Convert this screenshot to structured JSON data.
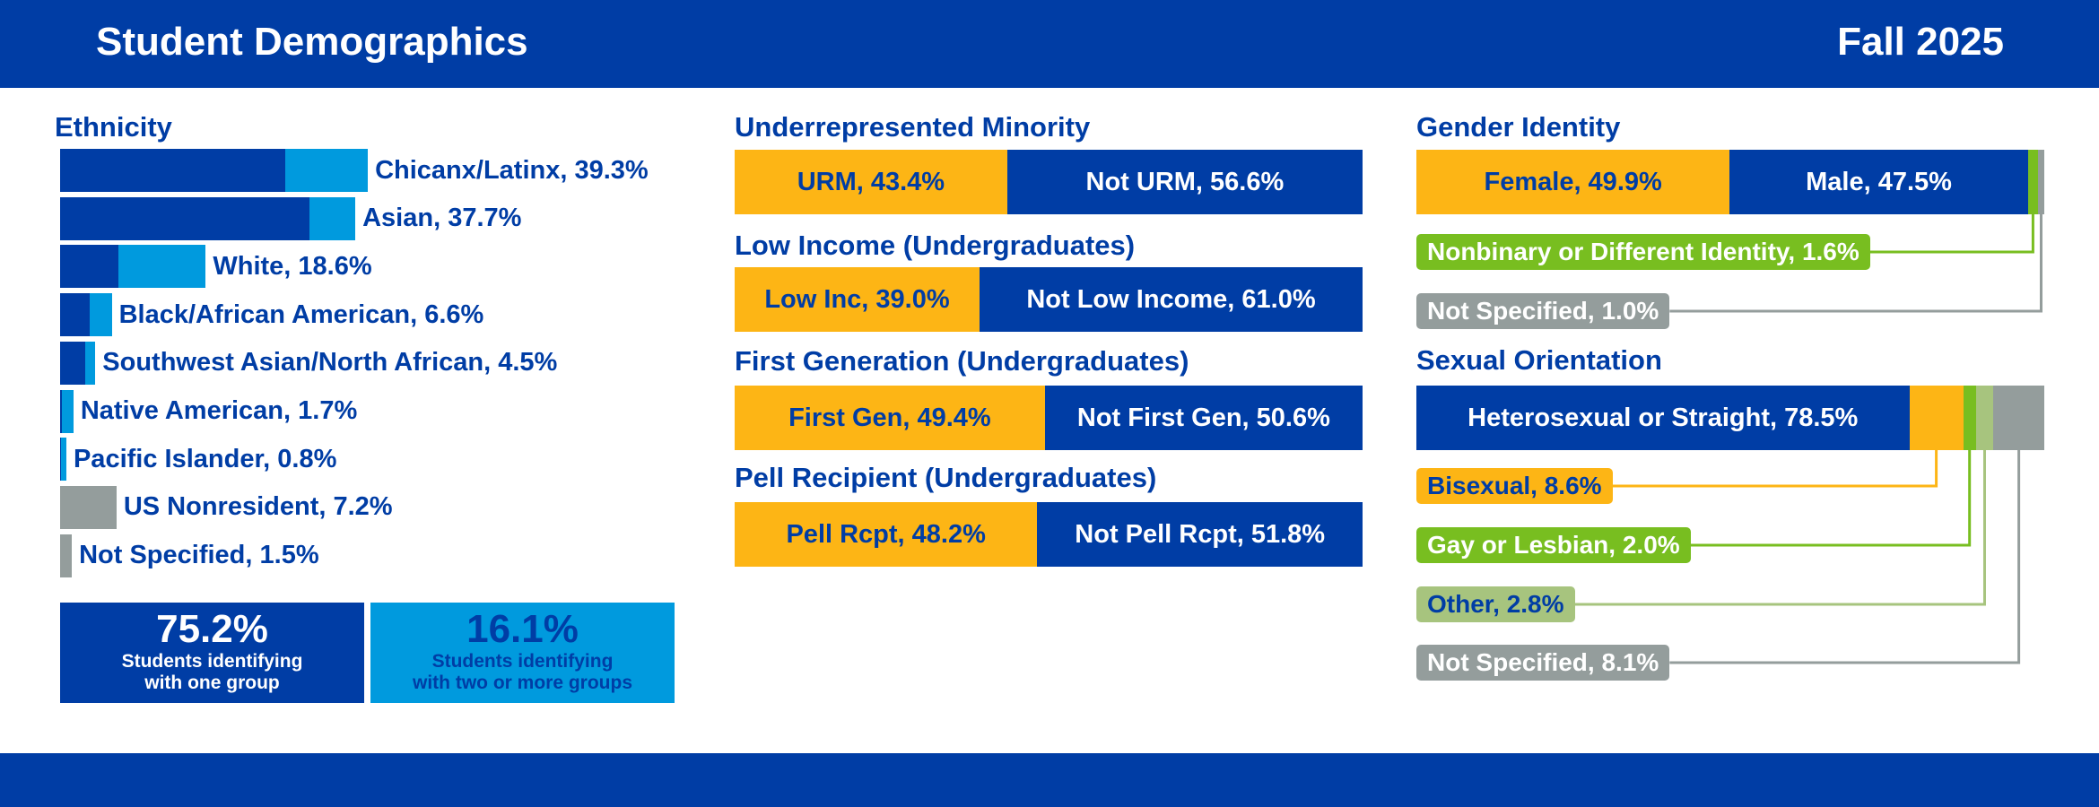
{
  "header": {
    "title": "Student Demographics",
    "term": "Fall 2025"
  },
  "colors": {
    "dark_blue": "#003DA5",
    "light_blue": "#009ADE",
    "gold": "#FDB515",
    "green": "#78BE20",
    "light_green": "#A7C47E",
    "gray": "#949D9C"
  },
  "chart_data": [
    {
      "type": "bar",
      "orientation": "horizontal",
      "stacked": true,
      "title": "Ethnicity",
      "categories": [
        "Chicanx/Latinx",
        "Asian",
        "White",
        "Black/African American",
        "Southwest Asian/North African",
        "Native American",
        "Pacific Islander",
        "US Nonresident",
        "Not Specified"
      ],
      "labels": [
        "Chicanx/Latinx, 39.3%",
        "Asian, 37.7%",
        "White, 18.6%",
        "Black/African American, 6.6%",
        "Southwest Asian/North African, 4.5%",
        "Native American, 1.7%",
        "Pacific Islander, 0.8%",
        "US Nonresident, 7.2%",
        "Not Specified, 1.5%"
      ],
      "values": [
        39.3,
        37.7,
        18.6,
        6.6,
        4.5,
        1.7,
        0.8,
        7.2,
        1.5
      ],
      "series": [
        {
          "name": "Students identifying with one group",
          "color": "#003DA5",
          "values": [
            28.8,
            31.9,
            7.4,
            3.8,
            3.2,
            0.2,
            0.1,
            0,
            0
          ]
        },
        {
          "name": "Students identifying with two or more groups",
          "color": "#009ADE",
          "values": [
            10.5,
            5.8,
            11.2,
            2.8,
            1.3,
            1.5,
            0.7,
            0,
            0
          ]
        },
        {
          "name": "",
          "color": "#949D9C",
          "values": [
            0,
            0,
            0,
            0,
            0,
            0,
            0,
            7.2,
            1.5
          ]
        }
      ],
      "summary": [
        {
          "value": "75.2%",
          "line1": "Students identifying",
          "line2": "with one group"
        },
        {
          "value": "16.1%",
          "line1": "Students identifying",
          "line2": "with two or more groups"
        }
      ]
    },
    {
      "type": "bar",
      "stacked": true,
      "title": "Underrepresented Minority",
      "segments": [
        {
          "label": "URM, 43.4%",
          "value": 43.4,
          "color": "#FDB515",
          "text": "#003DA5"
        },
        {
          "label": "Not URM, 56.6%",
          "value": 56.6,
          "color": "#003DA5",
          "text": "#FFFFFF"
        }
      ]
    },
    {
      "type": "bar",
      "stacked": true,
      "title": "Low Income (Undergraduates)",
      "segments": [
        {
          "label": "Low Inc, 39.0%",
          "value": 39.0,
          "color": "#FDB515",
          "text": "#003DA5"
        },
        {
          "label": "Not Low Income, 61.0%",
          "value": 61.0,
          "color": "#003DA5",
          "text": "#FFFFFF"
        }
      ]
    },
    {
      "type": "bar",
      "stacked": true,
      "title": "First Generation (Undergraduates)",
      "segments": [
        {
          "label": "First Gen, 49.4%",
          "value": 49.4,
          "color": "#FDB515",
          "text": "#003DA5"
        },
        {
          "label": "Not First Gen, 50.6%",
          "value": 50.6,
          "color": "#003DA5",
          "text": "#FFFFFF"
        }
      ]
    },
    {
      "type": "bar",
      "stacked": true,
      "title": "Pell Recipient (Undergraduates)",
      "segments": [
        {
          "label": "Pell Rcpt, 48.2%",
          "value": 48.2,
          "color": "#FDB515",
          "text": "#003DA5"
        },
        {
          "label": "Not Pell Rcpt, 51.8%",
          "value": 51.8,
          "color": "#003DA5",
          "text": "#FFFFFF"
        }
      ]
    },
    {
      "type": "bar",
      "stacked": true,
      "title": "Gender Identity",
      "segments": [
        {
          "label": "Female, 49.9%",
          "value": 49.9,
          "color": "#FDB515",
          "text": "#003DA5",
          "inline": true
        },
        {
          "label": "Male, 47.5%",
          "value": 47.5,
          "color": "#003DA5",
          "text": "#FFFFFF",
          "inline": true
        },
        {
          "label": "Nonbinary or Different Identity, 1.6%",
          "value": 1.6,
          "color": "#78BE20",
          "text": "#FFFFFF",
          "inline": false
        },
        {
          "label": "Not Specified, 1.0%",
          "value": 1.0,
          "color": "#949D9C",
          "text": "#FFFFFF",
          "inline": false
        }
      ]
    },
    {
      "type": "bar",
      "stacked": true,
      "title": "Sexual Orientation",
      "segments": [
        {
          "label": "Heterosexual or Straight, 78.5%",
          "value": 78.5,
          "color": "#003DA5",
          "text": "#FFFFFF",
          "inline": true
        },
        {
          "label": "Bisexual, 8.6%",
          "value": 8.6,
          "color": "#FDB515",
          "text": "#003DA5",
          "inline": false
        },
        {
          "label": "Gay or Lesbian, 2.0%",
          "value": 2.0,
          "color": "#78BE20",
          "text": "#FFFFFF",
          "inline": false
        },
        {
          "label": "Other, 2.8%",
          "value": 2.8,
          "color": "#A7C47E",
          "text": "#003DA5",
          "inline": false
        },
        {
          "label": "Not Specified, 8.1%",
          "value": 8.1,
          "color": "#949D9C",
          "text": "#FFFFFF",
          "inline": false
        }
      ]
    }
  ]
}
